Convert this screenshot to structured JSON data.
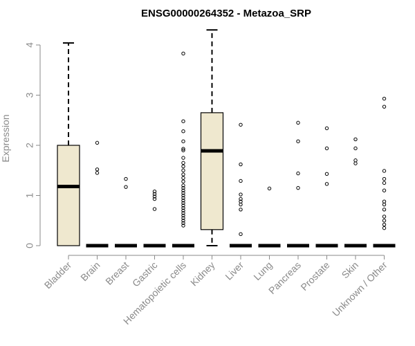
{
  "chart_data": {
    "type": "box",
    "title": "ENSG00000264352 - Metazoa_SRP",
    "xlabel": "",
    "ylabel": "Expression",
    "ylim": [
      0,
      4.3
    ],
    "yticks": [
      0,
      1,
      2,
      3,
      4
    ],
    "box_fill": "#efe8cf",
    "categories": [
      "Bladder",
      "Brain",
      "Breast",
      "Gastric",
      "Hematopoietic cells",
      "Kidney",
      "Liver",
      "Lung",
      "Pancreas",
      "Prostate",
      "Skin",
      "Unknown / Other"
    ],
    "boxes": [
      {
        "min": 0,
        "q1": 0,
        "median": 1.18,
        "q3": 2.0,
        "max": 4.04,
        "outliers": []
      },
      {
        "min": 0,
        "q1": 0,
        "median": 0,
        "q3": 0,
        "max": 0,
        "outliers": [
          2.05,
          1.52,
          1.45
        ]
      },
      {
        "min": 0,
        "q1": 0,
        "median": 0,
        "q3": 0,
        "max": 0,
        "outliers": [
          1.33,
          1.17
        ]
      },
      {
        "min": 0,
        "q1": 0,
        "median": 0,
        "q3": 0,
        "max": 0,
        "outliers": [
          1.08,
          1.03,
          0.98,
          0.93,
          0.73
        ]
      },
      {
        "min": 0,
        "q1": 0,
        "median": 0,
        "q3": 0,
        "max": 0,
        "outliers": [
          3.83,
          2.48,
          2.28,
          2.08,
          1.93,
          1.9,
          1.75,
          1.65,
          1.58,
          1.5,
          1.42,
          1.35,
          1.28,
          1.2,
          1.15,
          1.1,
          1.05,
          1.0,
          0.95,
          0.9,
          0.85,
          0.8,
          0.75,
          0.7,
          0.65,
          0.6,
          0.55,
          0.5,
          0.45,
          0.4
        ]
      },
      {
        "min": 0,
        "q1": 0.32,
        "median": 1.89,
        "q3": 2.65,
        "max": 4.3,
        "outliers": []
      },
      {
        "min": 0,
        "q1": 0,
        "median": 0,
        "q3": 0,
        "max": 0,
        "outliers": [
          2.41,
          1.62,
          1.29,
          1.02,
          0.93,
          0.88,
          0.82,
          0.72,
          0.23
        ]
      },
      {
        "min": 0,
        "q1": 0,
        "median": 0,
        "q3": 0,
        "max": 0,
        "outliers": [
          1.14
        ]
      },
      {
        "min": 0,
        "q1": 0,
        "median": 0,
        "q3": 0,
        "max": 0,
        "outliers": [
          2.45,
          2.08,
          1.44,
          1.15
        ]
      },
      {
        "min": 0,
        "q1": 0,
        "median": 0,
        "q3": 0,
        "max": 0,
        "outliers": [
          2.34,
          1.94,
          1.43,
          1.23
        ]
      },
      {
        "min": 0,
        "q1": 0,
        "median": 0,
        "q3": 0,
        "max": 0,
        "outliers": [
          2.12,
          1.94,
          1.7,
          1.64
        ]
      },
      {
        "min": 0,
        "q1": 0,
        "median": 0,
        "q3": 0,
        "max": 0,
        "outliers": [
          2.93,
          2.77,
          1.49,
          1.33,
          1.25,
          1.1,
          0.88,
          0.82,
          0.72,
          0.58,
          0.5,
          0.42,
          0.35
        ]
      }
    ]
  }
}
